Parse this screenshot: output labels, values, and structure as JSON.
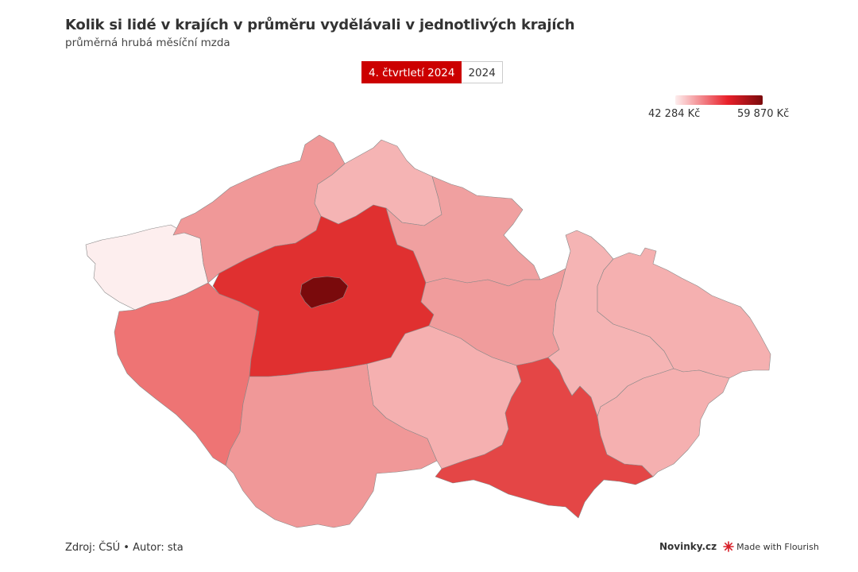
{
  "title": "Kolik si lidé v krajích v průměru vydělávali v jednotlivých krajích",
  "subtitle": "průměrná hrubá měsíční mzda",
  "tabs": [
    {
      "label": "4. čtvrtletí 2024",
      "active": true
    },
    {
      "label": "2024",
      "active": false
    }
  ],
  "legend": {
    "min": "42 284 Kč",
    "max": "59 870 Kč",
    "color_min": "#fdeeee",
    "color_mid": "#e8202a",
    "color_max": "#7a0a0c"
  },
  "footer": {
    "source": "Zdroj: ČSÚ • Autor: sta",
    "brand": "Novinky.cz",
    "flourish": "Made with Flourish"
  },
  "map": {
    "regions": [
      {
        "name": "karlovarsky-kraj",
        "color": "#fdeeee"
      },
      {
        "name": "ustecky-kraj",
        "color": "#f09898"
      },
      {
        "name": "liberecky-kraj",
        "color": "#f5b4b4"
      },
      {
        "name": "kralovehradecky-kraj",
        "color": "#f0a0a0"
      },
      {
        "name": "plzensky-kraj",
        "color": "#ee7474"
      },
      {
        "name": "stredocesky-kraj",
        "color": "#e03030"
      },
      {
        "name": "praha",
        "color": "#7a0a0c"
      },
      {
        "name": "pardubicky-kraj",
        "color": "#f09c9c"
      },
      {
        "name": "jihocesky-kraj",
        "color": "#f09898"
      },
      {
        "name": "kraj-vysocina",
        "color": "#f5b0b0"
      },
      {
        "name": "jihomoravsky-kraj",
        "color": "#e44646"
      },
      {
        "name": "olomoucky-kraj",
        "color": "#f5b4b4"
      },
      {
        "name": "moravskoslezsky-kraj",
        "color": "#f5b0b0"
      },
      {
        "name": "zlinsky-kraj",
        "color": "#f5b0b0"
      }
    ]
  }
}
